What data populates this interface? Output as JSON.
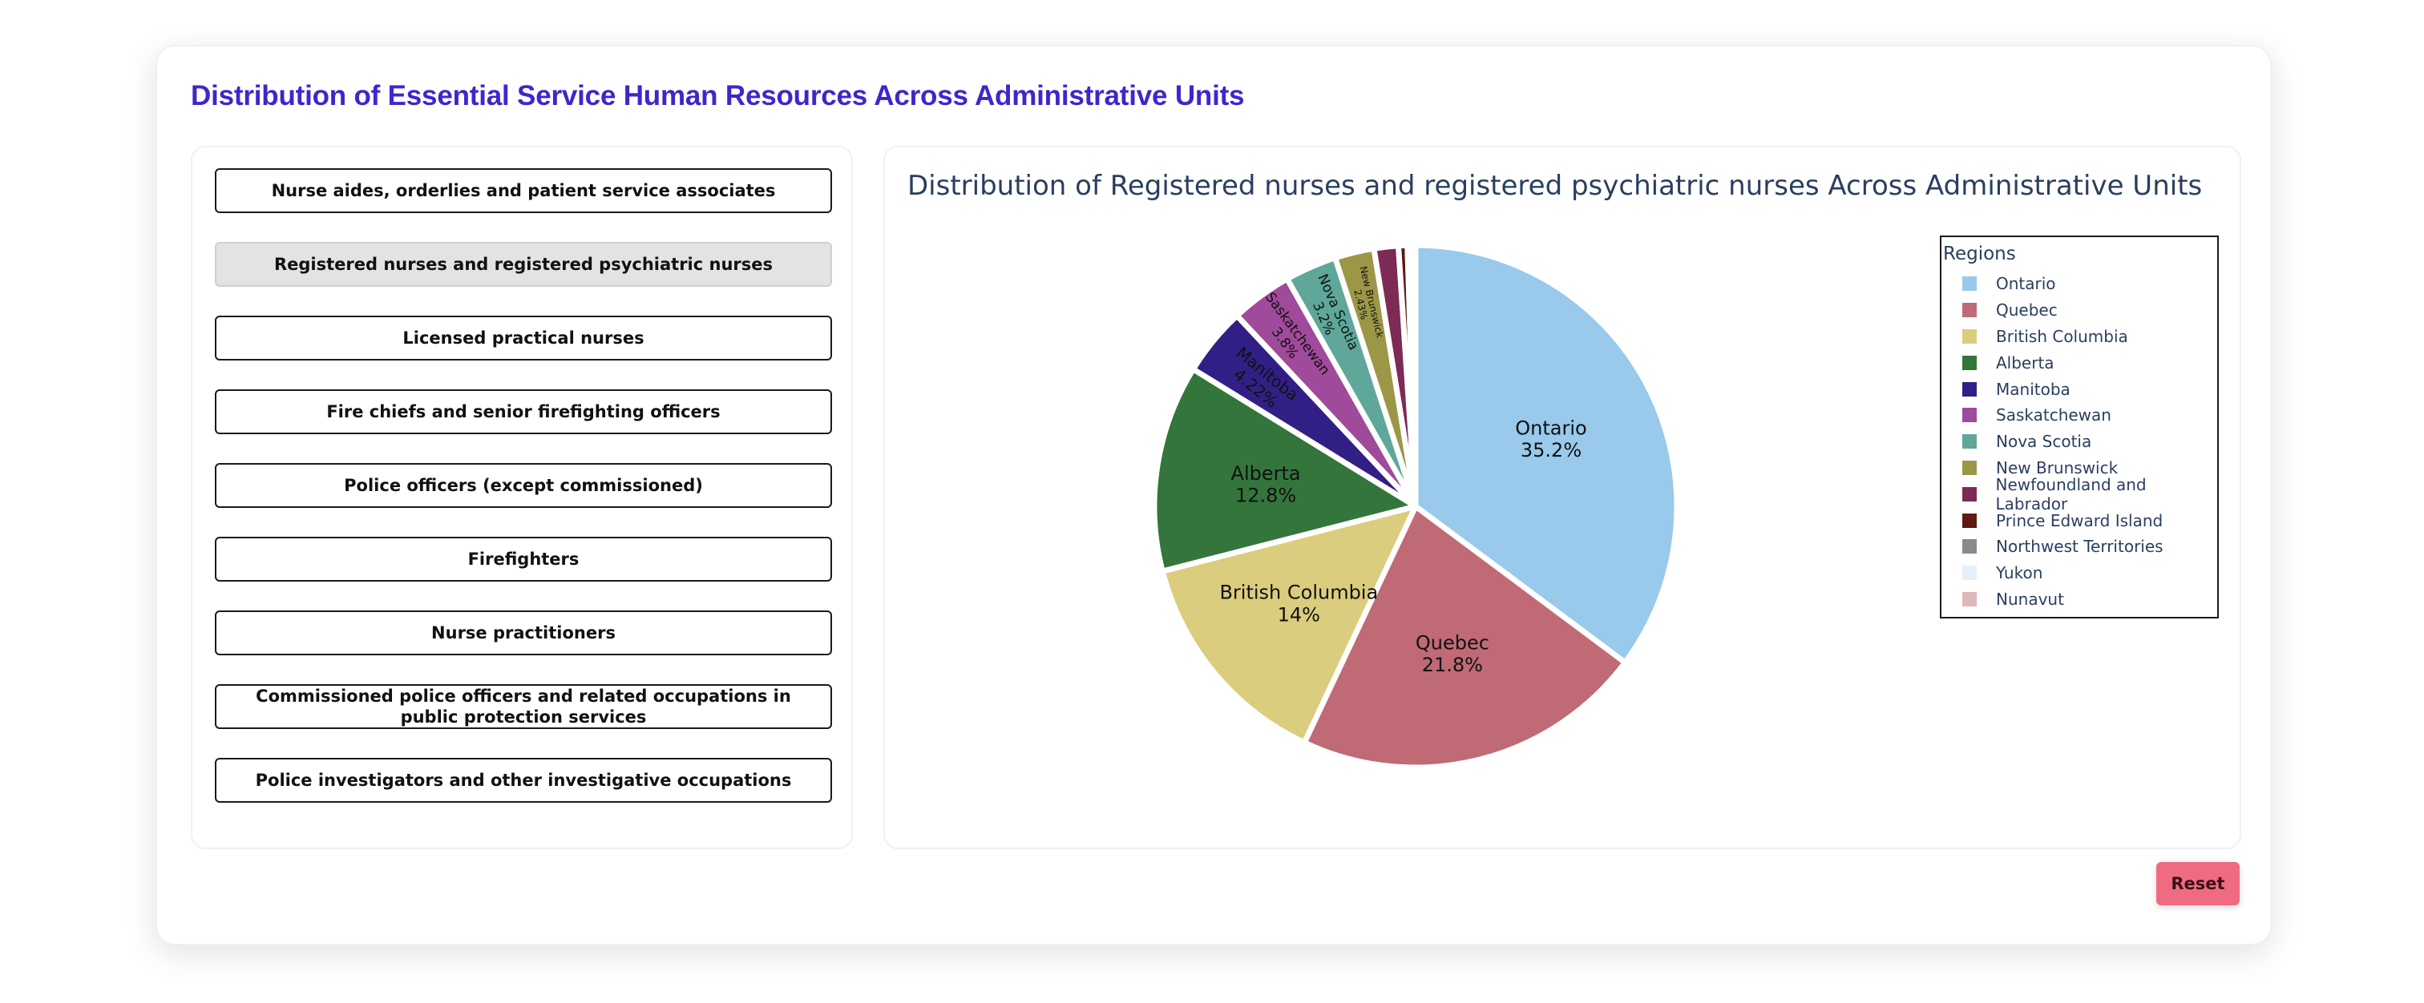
{
  "page": {
    "title": "Distribution of Essential Service Human Resources Across Administrative Units"
  },
  "sidebar": {
    "buttons": [
      {
        "label": "Nurse aides, orderlies and patient service associates",
        "active": false
      },
      {
        "label": "Registered nurses and registered psychiatric nurses",
        "active": true
      },
      {
        "label": "Licensed practical nurses",
        "active": false
      },
      {
        "label": "Fire chiefs and senior firefighting officers",
        "active": false
      },
      {
        "label": "Police officers (except commissioned)",
        "active": false
      },
      {
        "label": "Firefighters",
        "active": false
      },
      {
        "label": "Nurse practitioners",
        "active": false
      },
      {
        "label": "Commissioned police officers and related occupations in public protection services",
        "active": false
      },
      {
        "label": "Police investigators and other investigative occupations",
        "active": false
      }
    ]
  },
  "reset_label": "Reset",
  "chart_data": {
    "type": "pie",
    "title": "Distribution of Registered nurses and registered psychiatric nurses Across Administrative Units",
    "legend_title": "Regions",
    "legend_position": "right",
    "slices": [
      {
        "name": "Ontario",
        "value": 35.2,
        "display": "35.2%",
        "color": "#99c9eb"
      },
      {
        "name": "Quebec",
        "value": 21.8,
        "display": "21.8%",
        "color": "#c06a75"
      },
      {
        "name": "British Columbia",
        "value": 14.0,
        "display": "14%",
        "color": "#dbcd7e"
      },
      {
        "name": "Alberta",
        "value": 12.8,
        "display": "12.8%",
        "color": "#34753c"
      },
      {
        "name": "Manitoba",
        "value": 4.22,
        "display": "4.22%",
        "color": "#321f85"
      },
      {
        "name": "Saskatchewan",
        "value": 3.8,
        "display": "3.8%",
        "color": "#a04a9b"
      },
      {
        "name": "Nova Scotia",
        "value": 3.2,
        "display": "3.2%",
        "color": "#5ea79a"
      },
      {
        "name": "New Brunswick",
        "value": 2.43,
        "display": "2.43%",
        "color": "#9b9747"
      },
      {
        "name": "Newfoundland and Labrador",
        "value": 1.5,
        "display": "",
        "color": "#7d2a55"
      },
      {
        "name": "Prince Edward Island",
        "value": 0.55,
        "display": "",
        "color": "#5f1a12"
      },
      {
        "name": "Northwest Territories",
        "value": 0.3,
        "display": "",
        "color": "#8a8a8a"
      },
      {
        "name": "Yukon",
        "value": 0.1,
        "display": "",
        "color": "#e6f0fa"
      },
      {
        "name": "Nunavut",
        "value": 0.1,
        "display": "",
        "color": "#ddb7bb"
      }
    ]
  }
}
